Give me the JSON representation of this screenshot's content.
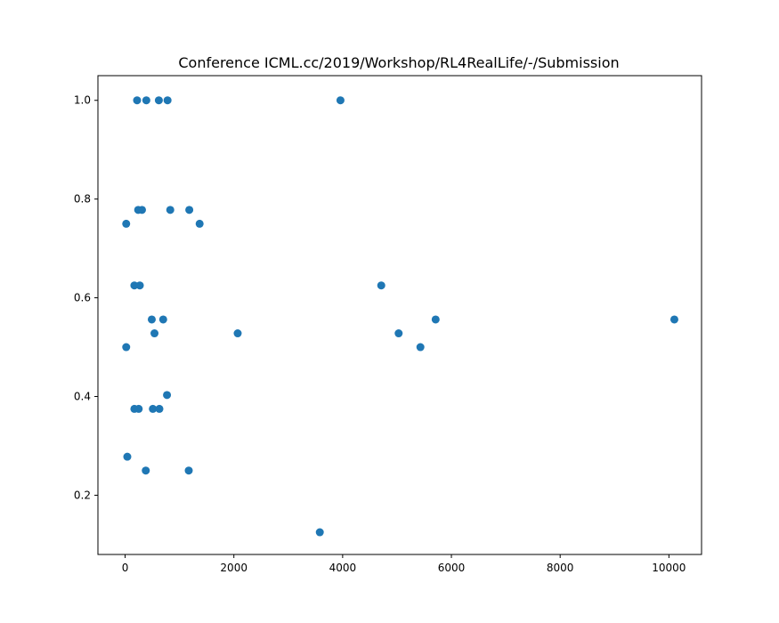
{
  "chart_data": {
    "type": "scatter",
    "title": "Conference ICML.cc/2019/Workshop/RL4RealLife/-/Submission",
    "xlabel": "",
    "ylabel": "",
    "xlim": [
      -500,
      10600
    ],
    "ylim": [
      0.08,
      1.05
    ],
    "x_ticks": [
      0,
      2000,
      4000,
      6000,
      8000,
      10000
    ],
    "y_ticks": [
      0.2,
      0.4,
      0.6,
      0.8,
      1.0
    ],
    "x_tick_labels": [
      "0",
      "2000",
      "4000",
      "6000",
      "8000",
      "10000"
    ],
    "y_tick_labels": [
      "0.2",
      "0.4",
      "0.6",
      "0.8",
      "1.0"
    ],
    "grid": false,
    "marker_color": "#1f77b4",
    "points": [
      {
        "x": 220,
        "y": 1.0
      },
      {
        "x": 390,
        "y": 1.0
      },
      {
        "x": 620,
        "y": 1.0
      },
      {
        "x": 780,
        "y": 1.0
      },
      {
        "x": 3960,
        "y": 1.0
      },
      {
        "x": 240,
        "y": 0.778
      },
      {
        "x": 310,
        "y": 0.778
      },
      {
        "x": 830,
        "y": 0.778
      },
      {
        "x": 1180,
        "y": 0.778
      },
      {
        "x": 20,
        "y": 0.75
      },
      {
        "x": 1370,
        "y": 0.75
      },
      {
        "x": 170,
        "y": 0.625
      },
      {
        "x": 270,
        "y": 0.625
      },
      {
        "x": 4710,
        "y": 0.625
      },
      {
        "x": 490,
        "y": 0.556
      },
      {
        "x": 700,
        "y": 0.556
      },
      {
        "x": 5710,
        "y": 0.556
      },
      {
        "x": 10100,
        "y": 0.556
      },
      {
        "x": 540,
        "y": 0.528
      },
      {
        "x": 2070,
        "y": 0.528
      },
      {
        "x": 5030,
        "y": 0.528
      },
      {
        "x": 20,
        "y": 0.5
      },
      {
        "x": 5430,
        "y": 0.5
      },
      {
        "x": 770,
        "y": 0.403
      },
      {
        "x": 170,
        "y": 0.375
      },
      {
        "x": 250,
        "y": 0.375
      },
      {
        "x": 510,
        "y": 0.375
      },
      {
        "x": 630,
        "y": 0.375
      },
      {
        "x": 40,
        "y": 0.278
      },
      {
        "x": 380,
        "y": 0.25
      },
      {
        "x": 1170,
        "y": 0.25
      },
      {
        "x": 3580,
        "y": 0.125
      }
    ]
  }
}
